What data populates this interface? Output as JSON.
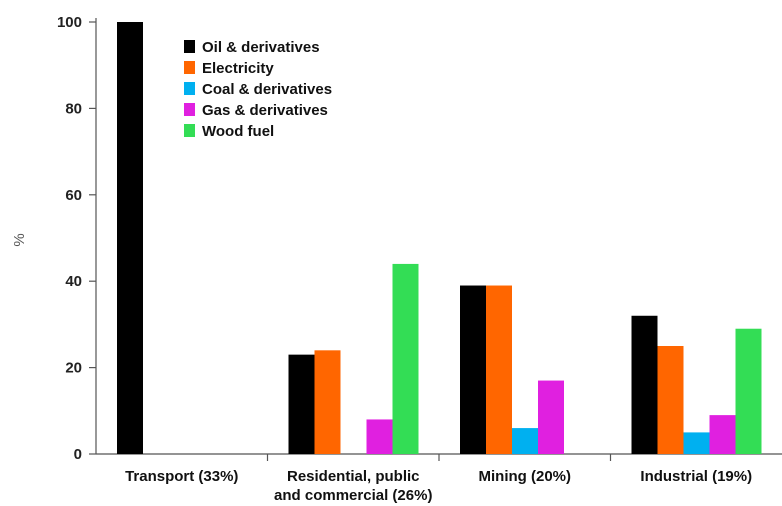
{
  "chart_data": {
    "type": "bar",
    "title": "",
    "xlabel": "",
    "ylabel": "%",
    "ylim": [
      0,
      100
    ],
    "yticks": [
      0,
      20,
      40,
      60,
      80,
      100
    ],
    "grid": false,
    "legend_position": "top-left",
    "categories": [
      [
        "Transport (33%)"
      ],
      [
        "Residential, public",
        "and commercial (26%)"
      ],
      [
        "Mining (20%)"
      ],
      [
        "Industrial (19%)"
      ]
    ],
    "series": [
      {
        "name": "Oil & derivatives",
        "color": "#000000",
        "values": [
          100,
          23,
          39,
          32
        ]
      },
      {
        "name": "Electricity",
        "color": "#FF6600",
        "values": [
          0,
          24,
          39,
          25
        ]
      },
      {
        "name": "Coal & derivatives",
        "color": "#00B0F0",
        "values": [
          0,
          0,
          6,
          5
        ]
      },
      {
        "name": "Gas & derivatives",
        "color": "#E020E0",
        "values": [
          0,
          8,
          17,
          9
        ]
      },
      {
        "name": "Wood fuel",
        "color": "#33DD55",
        "values": [
          0,
          44,
          0,
          29
        ]
      }
    ]
  }
}
